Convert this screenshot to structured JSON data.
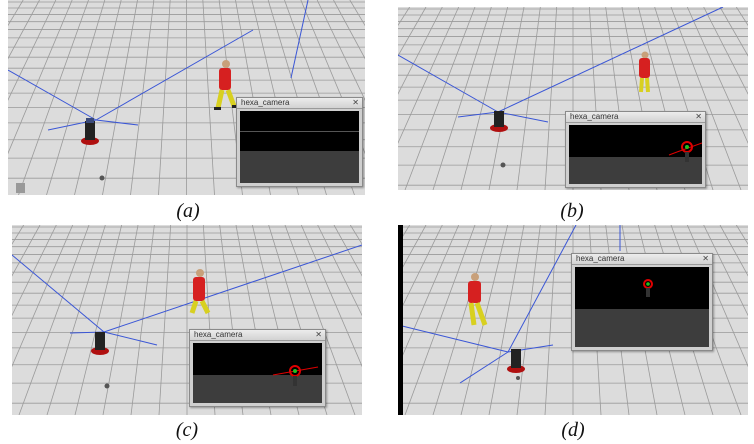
{
  "panels": [
    {
      "caption": "(a)",
      "camera_title": "hexa_camera",
      "target_visible": false
    },
    {
      "caption": "(b)",
      "camera_title": "hexa_camera",
      "target_visible": true
    },
    {
      "caption": "(c)",
      "camera_title": "hexa_camera",
      "target_visible": true
    },
    {
      "caption": "(d)",
      "camera_title": "hexa_camera",
      "target_visible": true
    }
  ],
  "colors": {
    "ground": "#dcdcdc",
    "grid_line": "#9a9a9a",
    "ray": "#3a56d6",
    "person_shirt": "#d62020",
    "person_pants": "#d8d020",
    "target_marker": "#e00000",
    "target_center": "#20c020"
  },
  "icons": {
    "close": "close-icon"
  }
}
